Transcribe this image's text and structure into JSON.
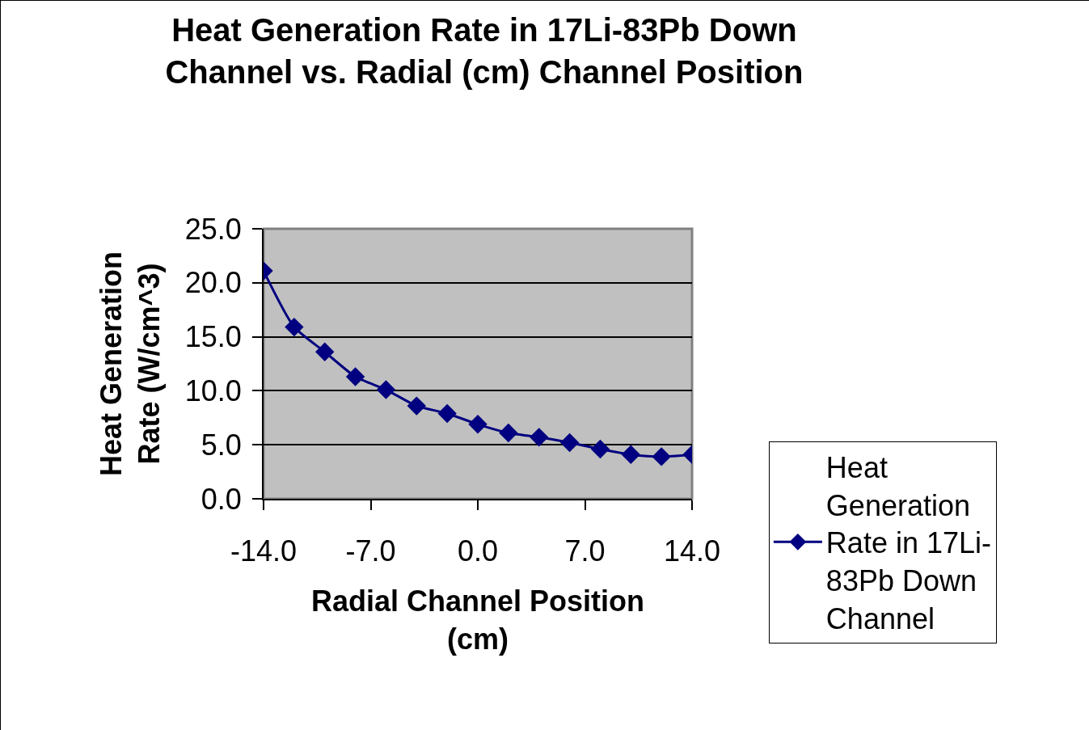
{
  "chart_data": {
    "type": "line",
    "title": "Heat Generation Rate in 17Li-83Pb Down Channel vs. Radial (cm) Channel Position",
    "xlabel": "Radial Channel Position (cm)",
    "ylabel": "Heat Generation Rate (W/cm^3)",
    "x": [
      -14,
      -12,
      -10,
      -8,
      -6,
      -4,
      -2,
      0,
      2,
      4,
      6,
      8,
      10,
      12,
      14
    ],
    "series": [
      {
        "name": "Heat Generation Rate in 17Li-83Pb Down Channel",
        "color": "#000080",
        "values": [
          21.1,
          15.9,
          13.6,
          11.3,
          10.1,
          8.6,
          7.9,
          6.9,
          6.1,
          5.7,
          5.2,
          4.6,
          4.1,
          3.9,
          4.1
        ]
      }
    ],
    "xlim": [
      -14,
      14
    ],
    "xticks": [
      {
        "value": -14,
        "label": "-14.0"
      },
      {
        "value": -7,
        "label": "-7.0"
      },
      {
        "value": 0,
        "label": "0.0"
      },
      {
        "value": 7,
        "label": "7.0"
      },
      {
        "value": 14,
        "label": "14.0"
      }
    ],
    "ylim": [
      0,
      25
    ],
    "yticks": [
      {
        "value": 0,
        "label": "0.0"
      },
      {
        "value": 5,
        "label": "5.0"
      },
      {
        "value": 10,
        "label": "10.0"
      },
      {
        "value": 15,
        "label": "15.0"
      },
      {
        "value": 20,
        "label": "20.0"
      },
      {
        "value": 25,
        "label": "25.0"
      }
    ],
    "grid": "y",
    "legend": "right",
    "marker": "diamond",
    "line_style": "solid"
  }
}
